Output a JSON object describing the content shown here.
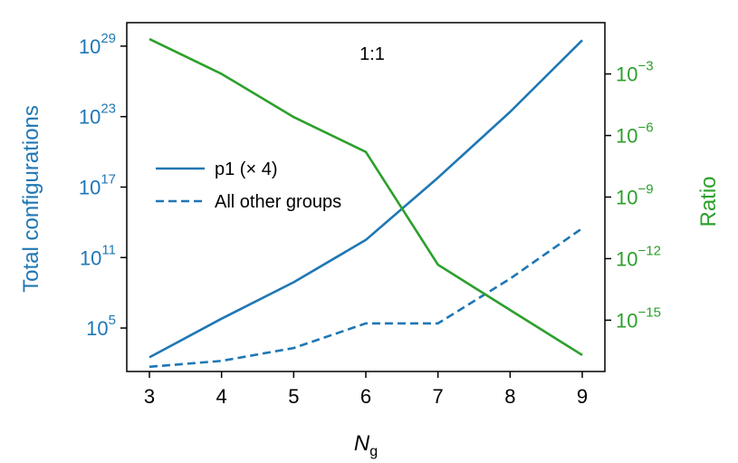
{
  "chart_data": {
    "type": "line",
    "annotation": "1:1",
    "xlabel_base": "N",
    "xlabel_sub": "g",
    "ylabel_left": "Total configurations",
    "ylabel_right": "Ratio",
    "colors": {
      "left": "#1f77b4",
      "right": "#2ca02c"
    },
    "x": [
      3,
      4,
      5,
      6,
      7,
      8,
      9
    ],
    "xlim": [
      3,
      9
    ],
    "left_axis": {
      "scale": "log",
      "ylim_exp": [
        1.3,
        31
      ],
      "tick_exponents": [
        5,
        11,
        17,
        23,
        29
      ],
      "tick_base": "10"
    },
    "right_axis": {
      "scale": "log",
      "ylim_exp": [
        -17.5,
        -0.5
      ],
      "tick_exponents": [
        -3,
        -6,
        -9,
        -12,
        -15
      ],
      "tick_base": "10",
      "minus_sign": "−"
    },
    "series": [
      {
        "name": "p1 (× 4)",
        "axis": "left",
        "style": "solid",
        "values_exp": [
          2.5,
          5.8,
          8.9,
          12.5,
          17.8,
          23.4,
          29.5
        ]
      },
      {
        "name": "All other groups",
        "axis": "left",
        "style": "dashed",
        "values_exp": [
          1.7,
          2.2,
          3.3,
          5.4,
          5.4,
          9.2,
          13.5
        ]
      },
      {
        "name": "",
        "axis": "right",
        "style": "solid",
        "values_exp": [
          -1.3,
          -3.0,
          -5.1,
          -6.8,
          -12.3,
          -14.5,
          -16.7
        ]
      }
    ],
    "legend": {
      "placement": "left"
    }
  }
}
